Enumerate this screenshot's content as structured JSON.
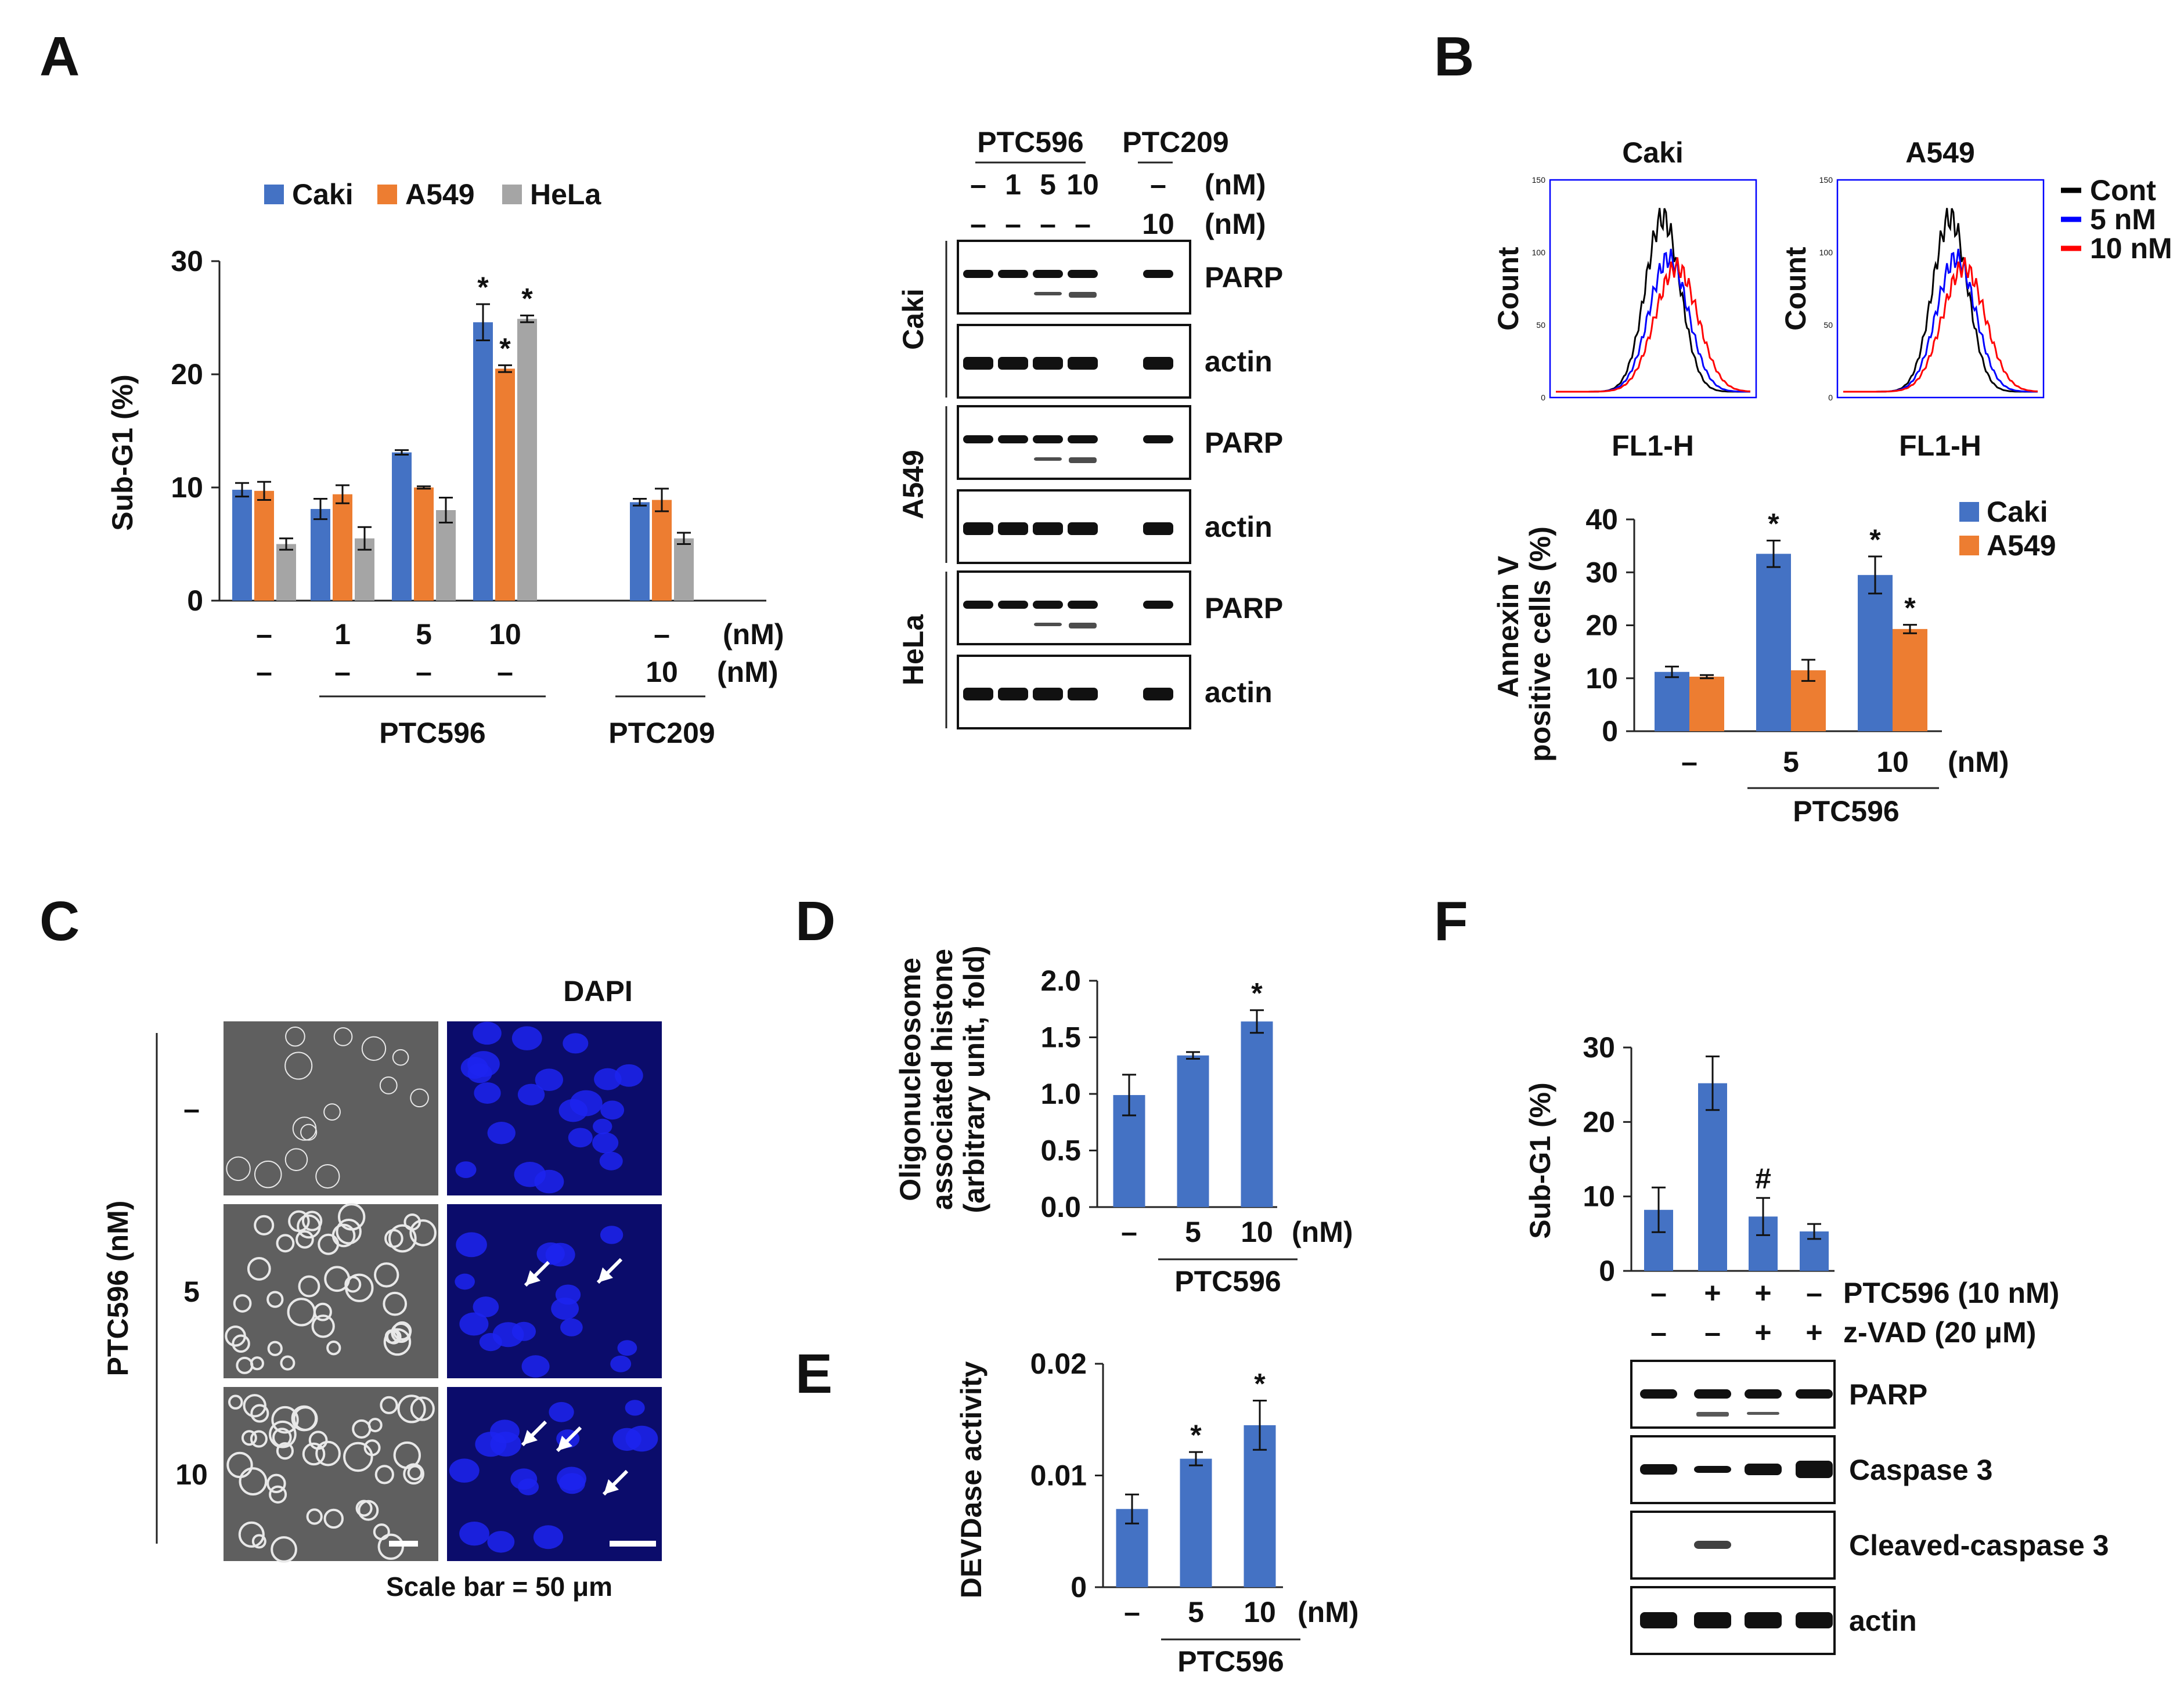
{
  "panels": {
    "A": "A",
    "B": "B",
    "C": "C",
    "D": "D",
    "E": "E",
    "F": "F"
  },
  "colors": {
    "caki": "#4472C4",
    "a549": "#ED7D31",
    "hela": "#A5A5A5",
    "cont": "#000000",
    "n5": "#0000FF",
    "n10": "#FF0000",
    "hist_frame": "#0000FF",
    "dapi": "#0b0c6b",
    "bf": "#5f5f5f"
  },
  "common": {
    "dash": "–",
    "plus": "+",
    "nM": "(nM)",
    "ptc596": "PTC596",
    "ptc209": "PTC209",
    "star": "*",
    "hash": "#"
  },
  "chart_data": [
    {
      "id": "A-bar",
      "type": "bar",
      "title": "",
      "ylabel": "Sub-G1 (%)",
      "ylim": [
        0,
        30
      ],
      "yticks": [
        "0",
        "10",
        "20",
        "30"
      ],
      "legend": [
        "Caki",
        "A549",
        "HeLa"
      ],
      "categories": [
        "–/–",
        "1",
        "5",
        "10",
        "PTC209 10"
      ],
      "row1": [
        "–",
        "1",
        "5",
        "10",
        "–"
      ],
      "row2": [
        "–",
        "–",
        "–",
        "–",
        "10"
      ],
      "series": [
        {
          "name": "Caki",
          "values": [
            9.8,
            8.1,
            13.1,
            24.6,
            8.7
          ],
          "err": [
            0.6,
            0.9,
            0.2,
            1.6,
            0.3
          ],
          "sig": [
            false,
            false,
            false,
            true,
            false
          ]
        },
        {
          "name": "A549",
          "values": [
            9.7,
            9.4,
            10.0,
            20.5,
            8.9
          ],
          "err": [
            0.8,
            0.8,
            0.1,
            0.3,
            1.0
          ],
          "sig": [
            false,
            false,
            false,
            true,
            false
          ]
        },
        {
          "name": "HeLa",
          "values": [
            5.0,
            5.5,
            8.0,
            24.9,
            5.5
          ],
          "err": [
            0.5,
            1.0,
            1.1,
            0.3,
            0.5
          ],
          "sig": [
            false,
            false,
            false,
            true,
            false
          ]
        }
      ]
    },
    {
      "id": "B-histograms",
      "type": "line",
      "xlabel": "FL1-H",
      "ylabel": "Count",
      "plots": [
        {
          "title": "Caki",
          "ymax": "150",
          "ticks": [
            "0",
            "50",
            "100",
            "150"
          ]
        },
        {
          "title": "A549",
          "ymax": "150",
          "ticks": [
            "0",
            "50",
            "100",
            "150"
          ]
        }
      ],
      "legend": [
        "Cont",
        "5 nM",
        "10 nM"
      ]
    },
    {
      "id": "B-bar",
      "type": "bar",
      "ylabel_line1": "Annexin V",
      "ylabel_line2": "positive cells (%)",
      "ylim": [
        0,
        40
      ],
      "yticks": [
        "0",
        "10",
        "20",
        "30",
        "40"
      ],
      "categories": [
        "–",
        "5",
        "10"
      ],
      "legend": [
        "Caki",
        "A549"
      ],
      "series": [
        {
          "name": "Caki",
          "values": [
            11.2,
            33.5,
            29.5
          ],
          "err": [
            1.0,
            2.5,
            3.5
          ],
          "sig": [
            false,
            true,
            true
          ]
        },
        {
          "name": "A549",
          "values": [
            10.3,
            11.5,
            19.3
          ],
          "err": [
            0.3,
            2.0,
            0.8
          ],
          "sig": [
            false,
            false,
            true
          ]
        }
      ]
    },
    {
      "id": "D-bar",
      "type": "bar",
      "ylabel_line1": "Oligonucleosome",
      "ylabel_line2": "associated histone",
      "ylabel_line3": "(arbitrary unit, fold)",
      "ylim": [
        0,
        2.0
      ],
      "yticks": [
        "0.0",
        "0.5",
        "1.0",
        "1.5",
        "2.0"
      ],
      "categories": [
        "–",
        "5",
        "10"
      ],
      "series": [
        {
          "name": "PTC596",
          "values": [
            0.99,
            1.34,
            1.64
          ],
          "err": [
            0.18,
            0.03,
            0.1
          ],
          "sig": [
            false,
            false,
            true
          ]
        }
      ]
    },
    {
      "id": "E-bar",
      "type": "bar",
      "ylabel": "DEVDase activity",
      "ylim": [
        0,
        0.02
      ],
      "yticks": [
        "0",
        "0.01",
        "0.02"
      ],
      "categories": [
        "–",
        "5",
        "10"
      ],
      "series": [
        {
          "name": "PTC596",
          "values": [
            0.007,
            0.0115,
            0.0145
          ],
          "err": [
            0.0013,
            0.0006,
            0.0022
          ],
          "sig": [
            false,
            true,
            true
          ]
        }
      ]
    },
    {
      "id": "F-bar",
      "type": "bar",
      "ylabel": "Sub-G1 (%)",
      "ylim": [
        0,
        30
      ],
      "yticks": [
        "0",
        "10",
        "20",
        "30"
      ],
      "row1": [
        "–",
        "+",
        "+",
        "–"
      ],
      "row2": [
        "–",
        "–",
        "+",
        "+"
      ],
      "row1_label": "PTC596  (10 nM)",
      "row2_label": "z-VAD  (20 μM)",
      "series": [
        {
          "name": "Sub-G1",
          "values": [
            8.2,
            25.2,
            7.3,
            5.3
          ],
          "err": [
            3.0,
            3.6,
            2.5,
            1.0
          ],
          "sig": [
            "",
            "",
            "#",
            ""
          ]
        }
      ]
    }
  ],
  "blotA": {
    "header1": "PTC596",
    "header2": "PTC209",
    "row1": [
      "–",
      "1",
      "5",
      "10",
      "–"
    ],
    "row2": [
      "–",
      "–",
      "–",
      "–",
      "10"
    ],
    "unit": "(nM)",
    "groups": [
      "Caki",
      "A549",
      "HeLa"
    ],
    "bands": [
      "PARP",
      "actin"
    ]
  },
  "micro": {
    "ylabel": "PTC596  (nM)",
    "header": "DAPI",
    "rows": [
      "–",
      "5",
      "10"
    ],
    "scale": "Scale bar = 50 μm"
  },
  "blotF": {
    "bands": [
      "PARP",
      "Caspase 3",
      "Cleaved-caspase 3",
      "actin"
    ]
  }
}
